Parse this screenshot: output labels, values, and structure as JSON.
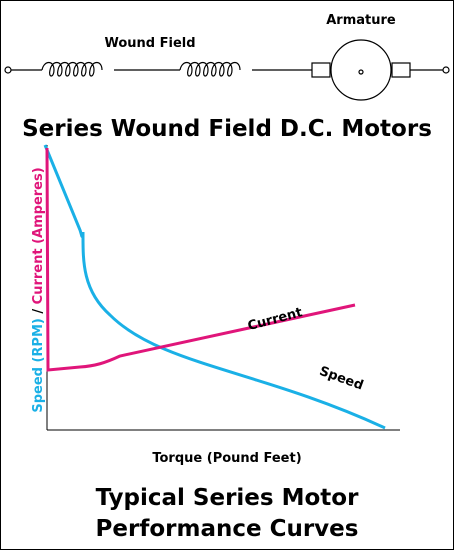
{
  "circuit": {
    "armature_label": "Armature",
    "field_label": "Wound Field"
  },
  "title": "Series Wound Field D.C. Motors",
  "chart": {
    "y_label": {
      "speed": "Speed (RPM)",
      "separator": "/",
      "current": "Current (Amperes)"
    },
    "x_label": "Torque (Pound Feet)",
    "curve_labels": {
      "current": "Current",
      "speed": "Speed"
    }
  },
  "caption": {
    "line1": "Typical Series Motor",
    "line2": "Performance Curves"
  }
}
